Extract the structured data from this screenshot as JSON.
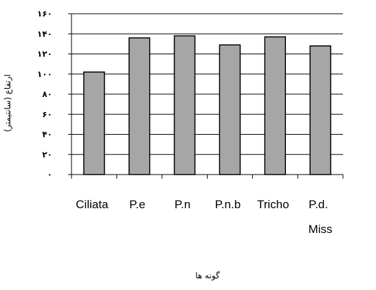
{
  "chart_data": {
    "type": "bar",
    "categories": [
      "Ciliata",
      "P.e",
      "P.n",
      "P.n.b",
      "Tricho",
      "P.d. Miss"
    ],
    "category_lines": [
      [
        "Ciliata"
      ],
      [
        "P.e"
      ],
      [
        "P.n"
      ],
      [
        "P.n.b"
      ],
      [
        "Tricho"
      ],
      [
        "P.d.",
        "Miss"
      ]
    ],
    "values": [
      102,
      136,
      138,
      129,
      137,
      128
    ],
    "ylim": [
      0,
      160
    ],
    "yticks": [
      0,
      20,
      40,
      60,
      80,
      100,
      120,
      140,
      160
    ],
    "ytick_labels": [
      "٠",
      "٢٠",
      "۴٠",
      "۶٠",
      "٨٠",
      "١٠٠",
      "١٢٠",
      "١۴٠",
      "١۶٠"
    ],
    "xlabel": "گونه ها",
    "ylabel": "ارتفاع (سانتیمتر)",
    "grid": true,
    "bar_color": "#a6a6a6",
    "bar_edge_color": "#000000",
    "gridline_color": "#000000"
  }
}
